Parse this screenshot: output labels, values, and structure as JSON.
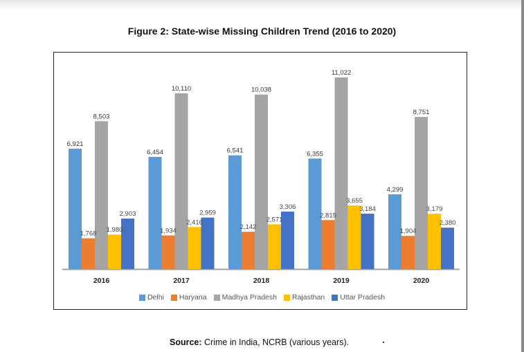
{
  "chart_data": {
    "type": "bar",
    "title": "Figure 2: State-wise Missing Children Trend (2016 to 2020)",
    "xlabel": "",
    "ylabel": "",
    "categories": [
      "2016",
      "2017",
      "2018",
      "2019",
      "2020"
    ],
    "series": [
      {
        "name": "Delhi",
        "color": "#5B9BD5",
        "values": [
          6921,
          6454,
          6541,
          6355,
          4299
        ],
        "labels": [
          "6,921",
          "6,454",
          "6,541",
          "6,355",
          "4,299"
        ]
      },
      {
        "name": "Haryana",
        "color": "#ED7D31",
        "values": [
          1768,
          1934,
          2142,
          2815,
          1904
        ],
        "labels": [
          "1,768",
          "1,934",
          "2,142",
          "2,815",
          "1,904"
        ]
      },
      {
        "name": "Madhya Pradesh",
        "color": "#A5A5A5",
        "values": [
          8503,
          10110,
          10038,
          11022,
          8751
        ],
        "labels": [
          "8,503",
          "10,110",
          "10,038",
          "11,022",
          "8,751"
        ]
      },
      {
        "name": "Rajasthan",
        "color": "#FFC000",
        "values": [
          1980,
          2416,
          2571,
          3655,
          3179
        ],
        "labels": [
          "1,980",
          "2,416",
          "2,571",
          "3,655",
          "3,179"
        ]
      },
      {
        "name": "Uttar Pradesh",
        "color": "#4472C4",
        "values": [
          2903,
          2959,
          3306,
          3184,
          2380
        ],
        "labels": [
          "2,903",
          "2,959",
          "3,306",
          "3,184",
          "2,380"
        ]
      }
    ],
    "ylim": [
      0,
      11022
    ],
    "grid": false,
    "legend_position": "bottom",
    "data_labels": true
  },
  "source": {
    "label": "Source:",
    "text": " Crime in India, NCRB (various years)."
  }
}
